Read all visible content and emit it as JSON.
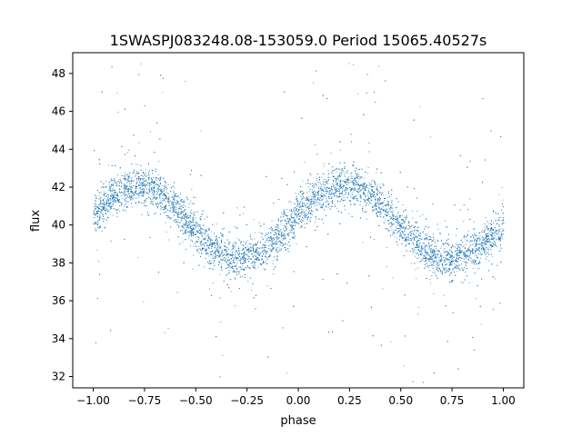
{
  "chart_data": {
    "type": "scatter",
    "title": "1SWASPJ083248.08-153059.0 Period 15065.40527s",
    "xlabel": "phase",
    "ylabel": "flux",
    "xlim": [
      -1.1,
      1.1
    ],
    "ylim": [
      31.4,
      49.1
    ],
    "xticks": [
      -1.0,
      -0.75,
      -0.5,
      -0.25,
      0.0,
      0.25,
      0.5,
      0.75,
      1.0
    ],
    "xtick_labels": [
      "−1.00",
      "−0.75",
      "−0.50",
      "−0.25",
      "0.00",
      "0.25",
      "0.50",
      "0.75",
      "1.00"
    ],
    "yticks": [
      32,
      34,
      36,
      38,
      40,
      42,
      44,
      46,
      48
    ],
    "ytick_labels": [
      "32",
      "34",
      "36",
      "38",
      "40",
      "42",
      "44",
      "46",
      "48"
    ],
    "grid": false,
    "point_color": "#1f77b4",
    "series": [
      {
        "x": [
          -1.0,
          -0.95,
          -0.9,
          -0.85,
          -0.8,
          -0.75,
          -0.7,
          -0.65,
          -0.6,
          -0.55,
          -0.5,
          -0.45,
          -0.4,
          -0.35,
          -0.3,
          -0.25,
          -0.2,
          -0.15,
          -0.1,
          -0.05,
          0.0,
          0.05,
          0.1,
          0.15,
          0.2,
          0.25,
          0.3,
          0.35,
          0.4,
          0.45,
          0.5,
          0.55,
          0.6,
          0.65,
          0.7,
          0.75,
          0.8,
          0.85,
          0.9,
          0.95,
          1.0
        ],
        "y": [
          40.3,
          41.1,
          41.6,
          41.9,
          42.1,
          42.1,
          41.9,
          41.5,
          41.0,
          40.3,
          39.7,
          39.1,
          38.7,
          38.4,
          38.2,
          38.3,
          38.5,
          38.9,
          39.4,
          40.0,
          40.5,
          41.1,
          41.6,
          41.9,
          42.1,
          42.2,
          42.1,
          41.8,
          41.2,
          40.5,
          39.9,
          39.3,
          38.8,
          38.4,
          38.2,
          38.2,
          38.4,
          38.7,
          39.0,
          39.4,
          40.0
        ]
      }
    ]
  }
}
